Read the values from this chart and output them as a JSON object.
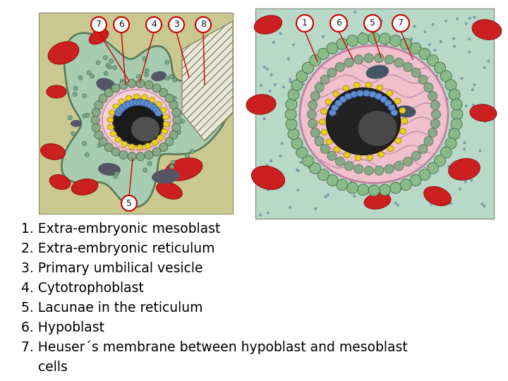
{
  "background_color": "#ffffff",
  "figsize": [
    7.2,
    5.4
  ],
  "dpi": 100,
  "text_lines": [
    "1. Extra-embryonic mesoblast",
    "2. Extra-embryonic reticulum",
    "3. Primary umbilical vesicle",
    "4. Cytotrophoblast",
    "5. Lacunae in the reticulum",
    "6. Hypoblast",
    "7. Heuser´s membrane between hypoblast and mesoblast",
    "    cells"
  ],
  "text_color": "#000000",
  "text_fontsize": 13.5,
  "left_bg": "#c8c890",
  "left_teal": "#a8ccb0",
  "right_bg": "#b8d8c8",
  "pink_color": "#f0c0cc",
  "yellow_color": "#e8d020",
  "blue_color": "#6090cc",
  "dark_color": "#282828",
  "red_color": "#cc2020",
  "green_cell_color": "#88bb88",
  "label_circle_color": "#cc0000",
  "label_text_color": "#111111"
}
